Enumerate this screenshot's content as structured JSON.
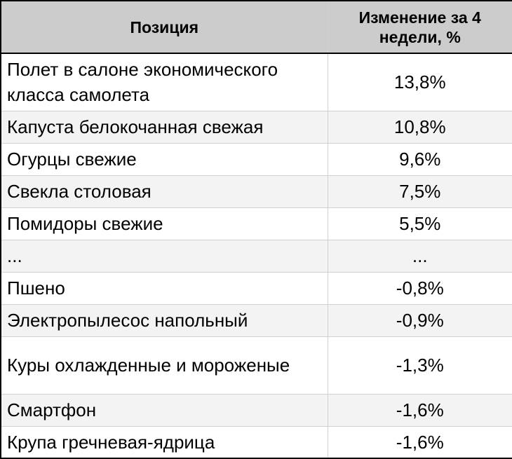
{
  "chart_data": {
    "type": "table",
    "columns": [
      "Позиция",
      "Изменение за 4 недели, %"
    ],
    "rows": [
      {
        "item": "Полет в салоне экономического класса самолета",
        "change": "13,8%"
      },
      {
        "item": "Капуста белокочанная свежая",
        "change": "10,8%"
      },
      {
        "item": "Огурцы свежие",
        "change": "9,6%"
      },
      {
        "item": "Свекла столовая",
        "change": "7,5%"
      },
      {
        "item": "Помидоры свежие",
        "change": "5,5%"
      },
      {
        "item": "...",
        "change": "..."
      },
      {
        "item": "Пшено",
        "change": "-0,8%"
      },
      {
        "item": "Электропылесос напольный",
        "change": "-0,9%"
      },
      {
        "item": "Куры охлажденные и мороженые",
        "change": "-1,3%"
      },
      {
        "item": "Смартфон",
        "change": "-1,6%"
      },
      {
        "item": "Крупа гречневая-ядрица",
        "change": "-1,6%"
      }
    ]
  }
}
